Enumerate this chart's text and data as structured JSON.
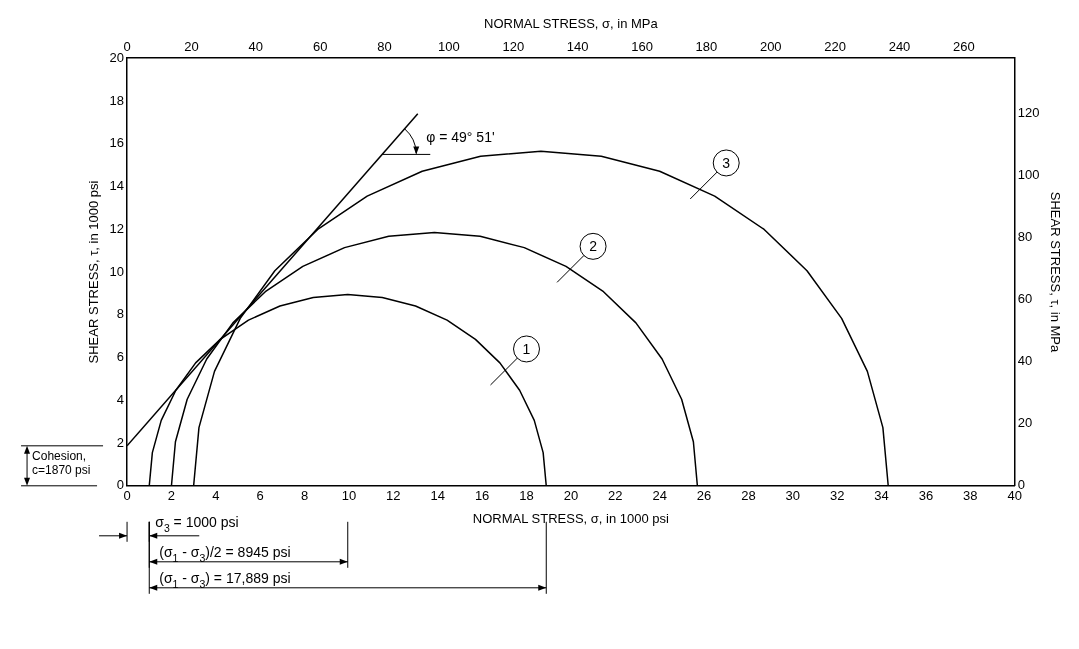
{
  "chart_data": {
    "type": "line",
    "xlabel": "NORMAL STRESS, σ, in 1000 psi",
    "x2label": "NORMAL STRESS, σ, in MPa",
    "ylabel": "SHEAR STRESS, τ, in 1000 psi",
    "y2label": "SHEAR STRESS, τ, in MPa",
    "xlim": [
      0,
      40
    ],
    "xticks": [
      0,
      2,
      4,
      6,
      8,
      10,
      12,
      14,
      16,
      18,
      20,
      22,
      24,
      26,
      28,
      30,
      32,
      34,
      36,
      38,
      40
    ],
    "x2lim": [
      0,
      275.8
    ],
    "x2ticks": [
      0,
      20,
      40,
      60,
      80,
      100,
      120,
      140,
      160,
      180,
      200,
      220,
      240,
      260
    ],
    "ylim": [
      0,
      20
    ],
    "yticks": [
      0,
      2,
      4,
      6,
      8,
      10,
      12,
      14,
      16,
      18,
      20
    ],
    "y2lim": [
      0,
      137.9
    ],
    "y2ticks": [
      0,
      20,
      40,
      60,
      80,
      100,
      120
    ],
    "grid": false,
    "legend": false,
    "marker": "none",
    "line_style": "solid",
    "series": [
      {
        "color": "#000000",
        "x": [
          18.89,
          18.75,
          18.35,
          17.69,
          16.8,
          15.7,
          14.42,
          13.0,
          11.5,
          9.945,
          8.39,
          6.89,
          5.47,
          4.2,
          3.09,
          2.2,
          1.54,
          1.14,
          1.0
        ],
        "values": [
          0,
          1.55,
          3.06,
          4.47,
          5.75,
          6.85,
          7.75,
          8.41,
          8.81,
          8.95,
          8.81,
          8.41,
          7.75,
          6.85,
          5.75,
          4.47,
          3.06,
          1.55,
          0
        ]
      },
      {
        "color": "#000000",
        "x": [
          25.7,
          25.52,
          24.99,
          24.11,
          22.93,
          21.47,
          19.78,
          17.9,
          15.91,
          13.85,
          11.79,
          9.8,
          7.92,
          6.23,
          4.77,
          3.59,
          2.71,
          2.18,
          2.0
        ],
        "values": [
          0,
          2.06,
          4.05,
          5.93,
          7.62,
          9.08,
          10.26,
          11.14,
          11.67,
          11.85,
          11.67,
          11.14,
          10.26,
          9.08,
          7.62,
          5.93,
          4.05,
          2.06,
          0
        ]
      },
      {
        "color": "#000000",
        "x": [
          34.3,
          34.06,
          33.36,
          32.2,
          30.64,
          28.71,
          26.48,
          24.0,
          21.37,
          18.65,
          15.93,
          13.3,
          10.82,
          8.59,
          6.66,
          5.1,
          3.94,
          3.24,
          3.0
        ],
        "values": [
          0,
          2.72,
          5.35,
          7.83,
          10.06,
          11.99,
          13.55,
          14.71,
          15.41,
          15.65,
          15.41,
          14.71,
          13.55,
          11.99,
          10.06,
          7.83,
          5.35,
          2.72,
          0
        ]
      },
      {
        "color": "#000000",
        "x": [
          0,
          13.1
        ],
        "values": [
          1.87,
          17.4
        ]
      }
    ],
    "annotations": [
      "Cohesion, c=1870 psi",
      "σ$_{3}$ = 1000 psi",
      "(σ$_{1}$ - σ$_{3}$)/2 = 8945 psi",
      "(σ$_{1}$ - σ$_{3}$) = 17,889 psi",
      {
        "text": "1",
        "x": 18.0,
        "y": 6.4
      },
      {
        "text": "2",
        "x": 21.0,
        "y": 11.2
      },
      {
        "text": "3",
        "x": 27.0,
        "y": 15.1
      },
      {
        "text": "φ = 49° 51'",
        "x": 11.5,
        "y": 15.5
      }
    ]
  }
}
